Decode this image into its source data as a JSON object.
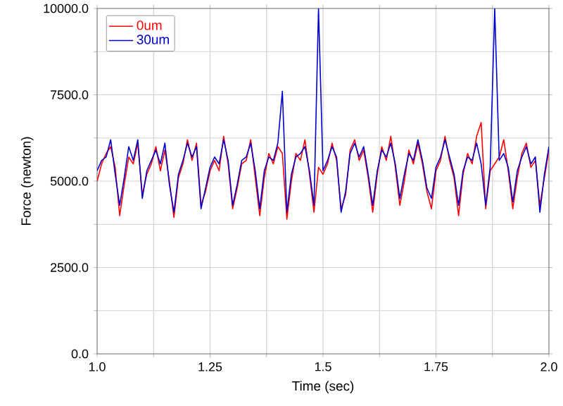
{
  "chart_data": {
    "type": "line",
    "xlabel": "Time (sec)",
    "ylabel": "Force (newton)",
    "x": [
      1.0,
      1.01,
      1.02,
      1.03,
      1.04,
      1.05,
      1.06,
      1.07,
      1.08,
      1.09,
      1.1,
      1.11,
      1.12,
      1.13,
      1.14,
      1.15,
      1.16,
      1.17,
      1.18,
      1.19,
      1.2,
      1.21,
      1.22,
      1.23,
      1.24,
      1.25,
      1.26,
      1.27,
      1.28,
      1.29,
      1.3,
      1.31,
      1.32,
      1.33,
      1.34,
      1.35,
      1.36,
      1.37,
      1.38,
      1.39,
      1.4,
      1.41,
      1.42,
      1.43,
      1.44,
      1.45,
      1.46,
      1.47,
      1.48,
      1.49,
      1.5,
      1.51,
      1.52,
      1.53,
      1.54,
      1.55,
      1.56,
      1.57,
      1.58,
      1.59,
      1.6,
      1.61,
      1.62,
      1.63,
      1.64,
      1.65,
      1.66,
      1.67,
      1.68,
      1.69,
      1.7,
      1.71,
      1.72,
      1.73,
      1.74,
      1.75,
      1.76,
      1.77,
      1.78,
      1.79,
      1.8,
      1.81,
      1.82,
      1.83,
      1.84,
      1.85,
      1.86,
      1.87,
      1.88,
      1.89,
      1.9,
      1.91,
      1.92,
      1.93,
      1.94,
      1.95,
      1.96,
      1.97,
      1.98,
      1.99,
      2.0
    ],
    "series": [
      {
        "name": "0um",
        "color": "#ff0000",
        "values": [
          5000,
          5500,
          5800,
          6000,
          5400,
          4000,
          4900,
          5700,
          5500,
          6100,
          4600,
          5200,
          5500,
          6000,
          5300,
          5900,
          5000,
          3950,
          5100,
          5500,
          6200,
          5600,
          6100,
          4300,
          4700,
          5300,
          5600,
          5300,
          6300,
          5500,
          4200,
          4800,
          5500,
          5600,
          6200,
          5100,
          4000,
          5100,
          5800,
          5500,
          6000,
          5800,
          3900,
          5000,
          5800,
          5600,
          6200,
          5200,
          4100,
          5400,
          5200,
          5500,
          6100,
          5600,
          4200,
          4600,
          5900,
          6200,
          5600,
          5900,
          5100,
          4100,
          5200,
          6000,
          5600,
          6300,
          5400,
          4300,
          5000,
          5900,
          5500,
          6100,
          5500,
          4700,
          4200,
          5300,
          5600,
          6300,
          5600,
          5100,
          4000,
          5200,
          5800,
          5500,
          6300,
          6700,
          4200,
          5300,
          5500,
          5700,
          6200,
          5300,
          4200,
          5100,
          5800,
          6100,
          5400,
          5600,
          4300,
          5100,
          5900
        ]
      },
      {
        "name": "30um",
        "color": "#0000cc",
        "values": [
          5300,
          5600,
          5700,
          6200,
          5200,
          4300,
          5100,
          6000,
          5600,
          6200,
          4500,
          5300,
          5600,
          5900,
          5500,
          6100,
          4900,
          4100,
          5200,
          5600,
          6100,
          5700,
          6000,
          4200,
          4800,
          5400,
          5700,
          5500,
          6200,
          5600,
          4300,
          4900,
          5600,
          5700,
          6100,
          5300,
          4200,
          5300,
          5700,
          5600,
          6100,
          7600,
          4100,
          5200,
          5700,
          5800,
          6000,
          5300,
          4300,
          10000,
          5300,
          5600,
          6000,
          5700,
          4100,
          4700,
          5800,
          6100,
          5700,
          6000,
          5200,
          4300,
          5300,
          5900,
          5700,
          6100,
          5500,
          4500,
          5200,
          5800,
          5600,
          6200,
          5600,
          4800,
          4500,
          5400,
          5700,
          6200,
          5700,
          5200,
          4300,
          5300,
          5700,
          5600,
          6100,
          5500,
          4300,
          5400,
          10000,
          5600,
          5800,
          5400,
          4400,
          5300,
          5700,
          6000,
          5500,
          5700,
          4100,
          5200,
          6000
        ]
      }
    ],
    "xlim": [
      1.0,
      2.0
    ],
    "xticks": [
      {
        "value": 1.0,
        "label": "1.0"
      },
      {
        "value": 1.125,
        "label": null
      },
      1.25,
      {
        "value": 1.375,
        "label": null
      },
      1.5,
      {
        "value": 1.625,
        "label": null
      },
      1.75,
      {
        "value": 1.875,
        "label": null
      },
      {
        "value": 2.0,
        "label": "2.0"
      }
    ],
    "ylim": [
      0,
      10000
    ],
    "yticks": [
      {
        "value": 0,
        "label": "0.0"
      },
      {
        "value": 1250,
        "label": null
      },
      {
        "value": 2500,
        "label": "2500.0"
      },
      {
        "value": 3750,
        "label": null
      },
      {
        "value": 5000,
        "label": "5000.0"
      },
      {
        "value": 6250,
        "label": null
      },
      {
        "value": 7500,
        "label": "7500.0"
      },
      {
        "value": 8750,
        "label": null
      },
      {
        "value": 10000,
        "label": "10000.0"
      }
    ],
    "grid": true,
    "legend": "top left"
  }
}
